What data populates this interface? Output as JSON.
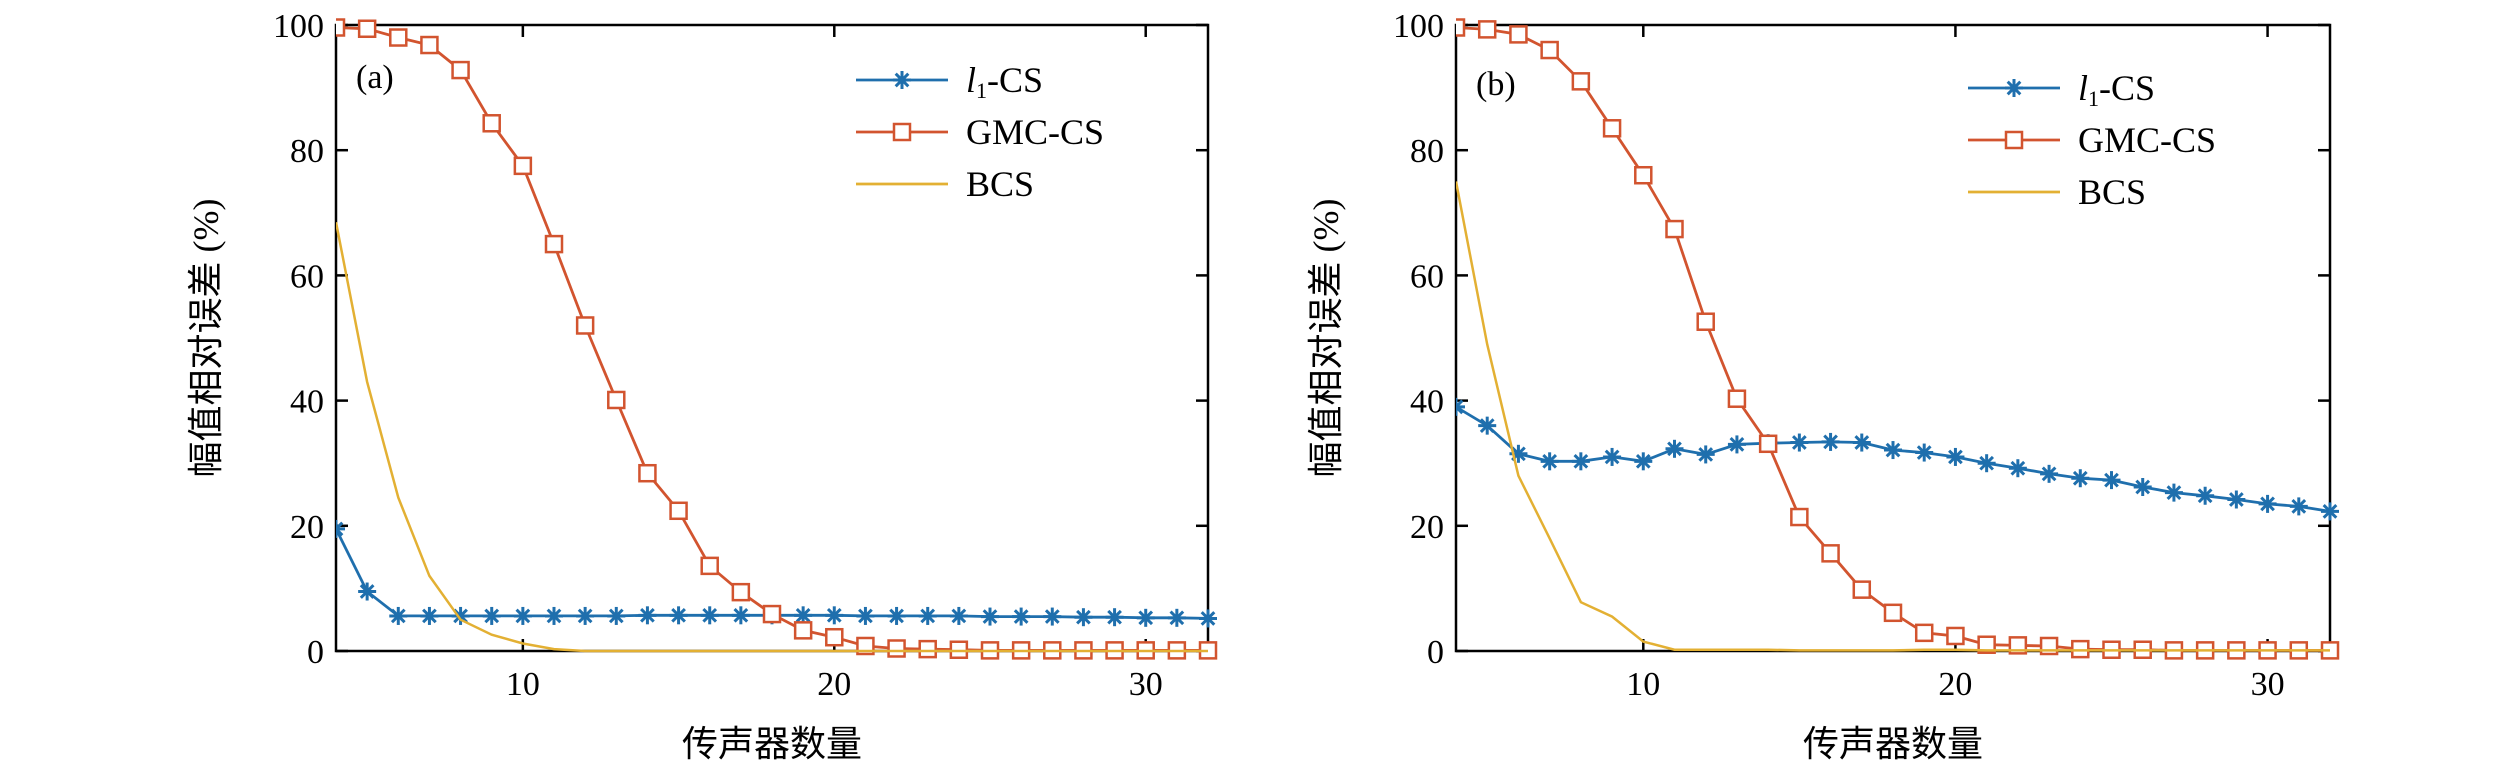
{
  "colors": {
    "l1cs": "#1f6fad",
    "gmccs": "#d2542f",
    "bcs": "#e3b033",
    "axis": "#000000"
  },
  "chart_data": [
    {
      "type": "line",
      "panel_label": "(a)",
      "xlabel": "传声器数量",
      "ylabel": "幅值相对误差 (%)",
      "xlim": [
        4,
        32
      ],
      "ylim": [
        0,
        100
      ],
      "xticks": [
        10,
        20,
        30
      ],
      "yticks": [
        0,
        20,
        40,
        60,
        80,
        100
      ],
      "grid": false,
      "legend_position": "top-right",
      "x": [
        4,
        5,
        6,
        7,
        8,
        9,
        10,
        11,
        12,
        13,
        14,
        15,
        16,
        17,
        18,
        19,
        20,
        21,
        22,
        23,
        24,
        25,
        26,
        27,
        28,
        29,
        30,
        31,
        32
      ],
      "series": [
        {
          "name": "l1-CS",
          "legend_main": "l",
          "legend_sub": "1",
          "legend_rest": "-CS",
          "color_key": "l1cs",
          "marker": "asterisk",
          "values": [
            19.5,
            9.5,
            5.6,
            5.6,
            5.6,
            5.6,
            5.6,
            5.6,
            5.6,
            5.6,
            5.7,
            5.7,
            5.7,
            5.7,
            5.7,
            5.7,
            5.7,
            5.6,
            5.6,
            5.6,
            5.6,
            5.5,
            5.5,
            5.5,
            5.4,
            5.4,
            5.3,
            5.3,
            5.2
          ]
        },
        {
          "name": "GMC-CS",
          "legend_main": "GMC-CS",
          "color_key": "gmccs",
          "marker": "square",
          "values": [
            99.6,
            99.4,
            98.0,
            96.8,
            92.8,
            84.3,
            77.5,
            65.0,
            52.0,
            40.1,
            28.4,
            22.4,
            13.6,
            9.4,
            5.9,
            3.3,
            2.2,
            0.8,
            0.4,
            0.3,
            0.2,
            0.1,
            0.1,
            0.1,
            0.1,
            0.1,
            0.1,
            0.1,
            0.1
          ]
        },
        {
          "name": "BCS",
          "legend_main": "BCS",
          "color_key": "bcs",
          "marker": "none",
          "values": [
            68.5,
            43.0,
            24.5,
            12.0,
            5.0,
            2.6,
            1.2,
            0.3,
            0,
            0,
            0,
            0,
            0,
            0,
            0,
            0,
            0,
            0,
            0,
            0,
            0,
            0,
            0,
            0,
            0,
            0,
            0,
            0,
            0
          ]
        }
      ]
    },
    {
      "type": "line",
      "panel_label": "(b)",
      "xlabel": "传声器数量",
      "ylabel": "幅值相对误差 (%)",
      "xlim": [
        4,
        32
      ],
      "ylim": [
        0,
        100
      ],
      "xticks": [
        10,
        20,
        30
      ],
      "yticks": [
        0,
        20,
        40,
        60,
        80,
        100
      ],
      "grid": false,
      "legend_position": "top-right",
      "x": [
        4,
        5,
        6,
        7,
        8,
        9,
        10,
        11,
        12,
        13,
        14,
        15,
        16,
        17,
        18,
        19,
        20,
        21,
        22,
        23,
        24,
        25,
        26,
        27,
        28,
        29,
        30,
        31,
        32
      ],
      "series": [
        {
          "name": "l1-CS",
          "legend_main": "l",
          "legend_sub": "1",
          "legend_rest": "-CS",
          "color_key": "l1cs",
          "marker": "asterisk",
          "values": [
            39.0,
            36.0,
            31.5,
            30.3,
            30.3,
            31.0,
            30.3,
            32.3,
            31.4,
            33.0,
            33.2,
            33.3,
            33.4,
            33.3,
            32.1,
            31.7,
            31.0,
            30.0,
            29.2,
            28.3,
            27.6,
            27.3,
            26.2,
            25.3,
            24.8,
            24.2,
            23.5,
            23.1,
            22.3
          ]
        },
        {
          "name": "GMC-CS",
          "legend_main": "GMC-CS",
          "color_key": "gmccs",
          "marker": "square",
          "values": [
            99.6,
            99.3,
            98.5,
            96.0,
            91.0,
            83.5,
            76.0,
            67.4,
            52.6,
            40.3,
            33.1,
            21.4,
            15.6,
            9.8,
            6.1,
            2.9,
            2.4,
            1.0,
            0.9,
            0.8,
            0.3,
            0.2,
            0.2,
            0.1,
            0.1,
            0.1,
            0.1,
            0.1,
            0.1
          ]
        },
        {
          "name": "BCS",
          "legend_main": "BCS",
          "color_key": "bcs",
          "marker": "none",
          "values": [
            75.0,
            49.0,
            28.0,
            18.0,
            7.8,
            5.5,
            1.5,
            0.2,
            0.2,
            0.2,
            0.2,
            0.1,
            0.1,
            0.1,
            0.1,
            0.2,
            0.2,
            0.1,
            0.1,
            0.1,
            0.1,
            0.1,
            0.1,
            0.1,
            0.1,
            0.1,
            0.1,
            0.1,
            0.1
          ]
        }
      ]
    }
  ]
}
